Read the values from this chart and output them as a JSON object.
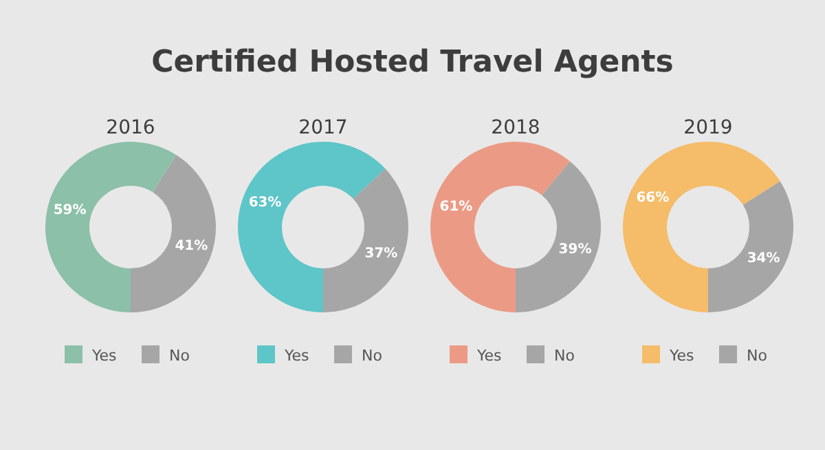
{
  "chart_data": [
    {
      "type": "other",
      "title": "Certified Hosted Travel Agents"
    },
    {
      "type": "donut",
      "title": "2016",
      "categories": [
        "Yes",
        "No"
      ],
      "values": [
        59,
        41
      ],
      "value_labels": [
        "59%",
        "41%"
      ],
      "colors": [
        "#8cc0a8",
        "#a6a6a6"
      ],
      "legend": "bottom"
    },
    {
      "type": "donut",
      "title": "2017",
      "categories": [
        "Yes",
        "No"
      ],
      "values": [
        63,
        37
      ],
      "value_labels": [
        "63%",
        "37%"
      ],
      "colors": [
        "#5ec5c8",
        "#a6a6a6"
      ],
      "legend": "bottom"
    },
    {
      "type": "donut",
      "title": "2018",
      "categories": [
        "Yes",
        "No"
      ],
      "values": [
        61,
        39
      ],
      "value_labels": [
        "61%",
        "39%"
      ],
      "colors": [
        "#eb9b85",
        "#a6a6a6"
      ],
      "legend": "bottom"
    },
    {
      "type": "donut",
      "title": "2019",
      "categories": [
        "Yes",
        "No"
      ],
      "values": [
        66,
        34
      ],
      "value_labels": [
        "66%",
        "34%"
      ],
      "colors": [
        "#f5bc69",
        "#a6a6a6"
      ],
      "legend": "bottom"
    }
  ]
}
